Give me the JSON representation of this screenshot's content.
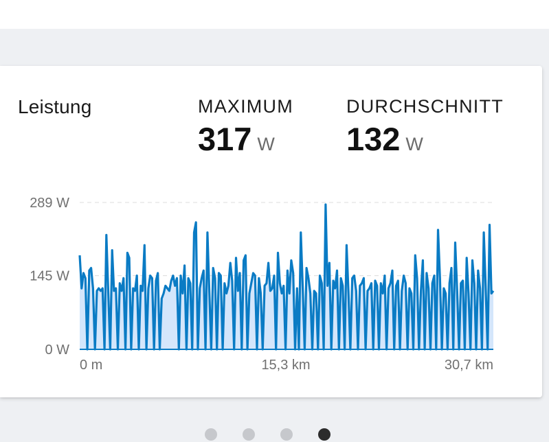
{
  "card": {
    "title": "Leistung",
    "stats": [
      {
        "label": "MAXIMUM",
        "value": "317",
        "unit": "W"
      },
      {
        "label": "DURCHSCHNITT",
        "value": "132",
        "unit": "W"
      }
    ]
  },
  "chart_data": {
    "type": "area",
    "y_ticks": [
      "289 W",
      "145 W",
      "0 W"
    ],
    "y_tick_values": [
      289,
      145,
      0
    ],
    "x_ticks": [
      "0 m",
      "15,3 km",
      "30,7 km"
    ],
    "x_tick_values": [
      0,
      15.3,
      30.7
    ],
    "ylim": [
      0,
      289
    ],
    "xlim": [
      0,
      30.7
    ],
    "grid": true,
    "colors": {
      "line": "#0a7bc4",
      "fill": "#d4e6fb",
      "grid": "#dcdcdc"
    },
    "series": [
      {
        "values": [
          185,
          120,
          150,
          140,
          0,
          155,
          160,
          120,
          0,
          115,
          120,
          115,
          120,
          0,
          225,
          110,
          0,
          195,
          115,
          120,
          0,
          130,
          115,
          140,
          0,
          190,
          180,
          0,
          120,
          115,
          145,
          0,
          125,
          115,
          205,
          0,
          120,
          145,
          140,
          0,
          135,
          150,
          0,
          100,
          110,
          125,
          120,
          115,
          135,
          145,
          125,
          140,
          0,
          145,
          110,
          165,
          0,
          140,
          130,
          0,
          230,
          250,
          0,
          120,
          140,
          155,
          0,
          230,
          115,
          0,
          160,
          140,
          0,
          150,
          145,
          0,
          130,
          110,
          125,
          170,
          135,
          0,
          180,
          115,
          150,
          0,
          175,
          185,
          0,
          110,
          130,
          150,
          145,
          0,
          140,
          110,
          0,
          125,
          130,
          170,
          115,
          120,
          145,
          0,
          190,
          130,
          110,
          125,
          0,
          155,
          110,
          175,
          150,
          0,
          120,
          0,
          230,
          120,
          0,
          160,
          140,
          110,
          0,
          115,
          110,
          0,
          145,
          130,
          0,
          285,
          125,
          170,
          0,
          135,
          120,
          155,
          0,
          140,
          125,
          0,
          205,
          110,
          0,
          140,
          145,
          115,
          0,
          125,
          130,
          140,
          0,
          115,
          120,
          130,
          0,
          135,
          125,
          0,
          130,
          110,
          145,
          0,
          120,
          130,
          155,
          0,
          125,
          135,
          0,
          115,
          145,
          130,
          0,
          120,
          110,
          0,
          185,
          140,
          0,
          115,
          175,
          0,
          150,
          120,
          0,
          130,
          145,
          0,
          235,
          140,
          0,
          120,
          110,
          0,
          130,
          160,
          0,
          210,
          115,
          0,
          130,
          135,
          0,
          180,
          110,
          0,
          175,
          130,
          0,
          155,
          120,
          0,
          230,
          120,
          0,
          245,
          110,
          115
        ]
      }
    ]
  },
  "pager": {
    "count": 4,
    "active": 3
  }
}
